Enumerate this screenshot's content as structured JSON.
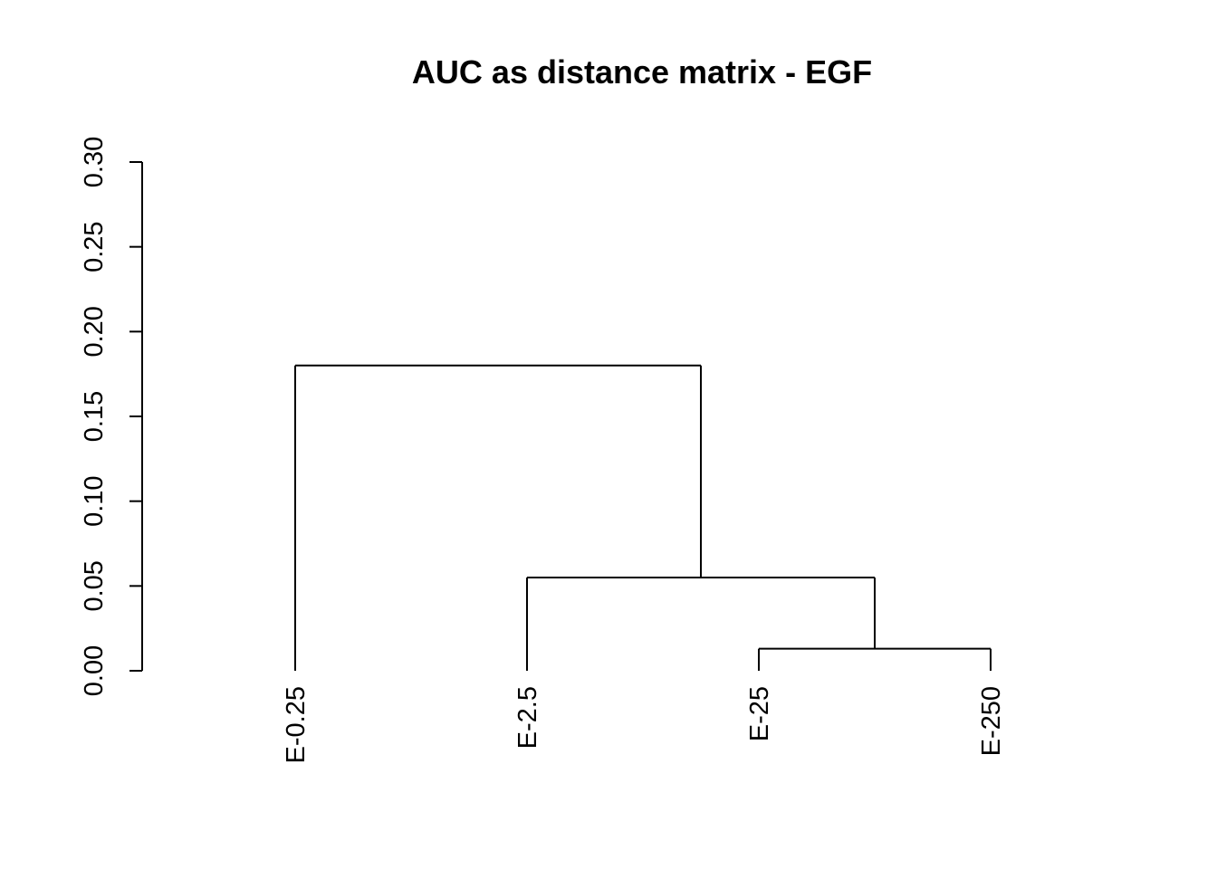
{
  "chart_data": {
    "type": "dendrogram",
    "title": "AUC as distance matrix - EGF",
    "ylabel": "",
    "xlabel": "",
    "ylim": [
      0,
      0.3
    ],
    "y_ticks": [
      "0.00",
      "0.05",
      "0.10",
      "0.15",
      "0.20",
      "0.25",
      "0.30"
    ],
    "y_tick_values": [
      0,
      0.05,
      0.1,
      0.15,
      0.2,
      0.25,
      0.3
    ],
    "leaves": [
      "E-0.25",
      "E-2.5",
      "E-25",
      "E-250"
    ],
    "merges": [
      {
        "left": "E-25",
        "right": "E-250",
        "height": 0.013
      },
      {
        "left": "E-2.5",
        "right": "E-25 + E-250",
        "height": 0.055
      },
      {
        "left": "E-0.25",
        "right": "E-2.5 + E-25 + E-250",
        "height": 0.18
      }
    ],
    "grid": false,
    "colors": {
      "line": "#000000",
      "background": "#ffffff"
    }
  }
}
